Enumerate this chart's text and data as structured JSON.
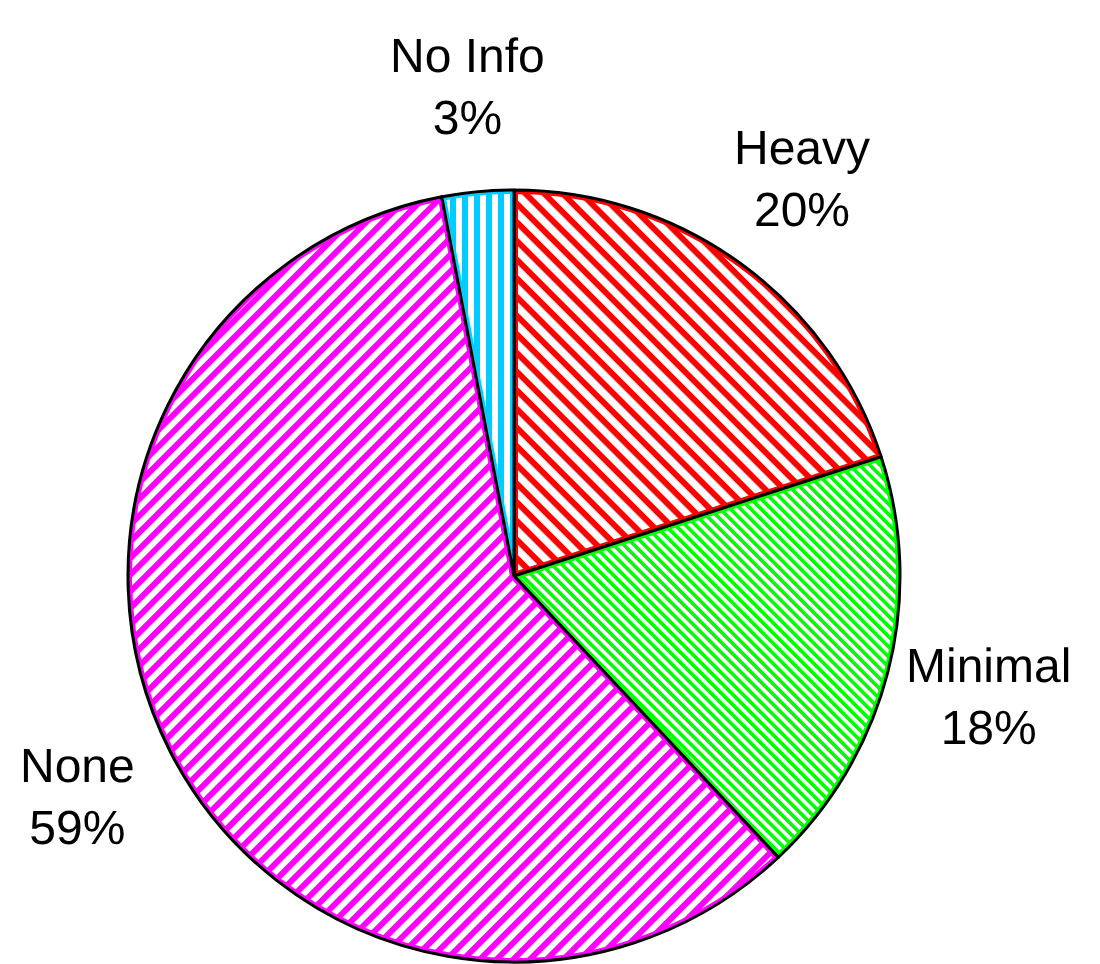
{
  "chart_data": {
    "type": "pie",
    "categories": [
      "Heavy",
      "Minimal",
      "None",
      "No Info"
    ],
    "values": [
      20,
      18,
      59,
      3
    ],
    "value_labels": [
      "20%",
      "18%",
      "59%",
      "3%"
    ],
    "colors": [
      "#ff0000",
      "#00ff00",
      "#ff00ff",
      "#00ccff"
    ],
    "legend": false
  }
}
